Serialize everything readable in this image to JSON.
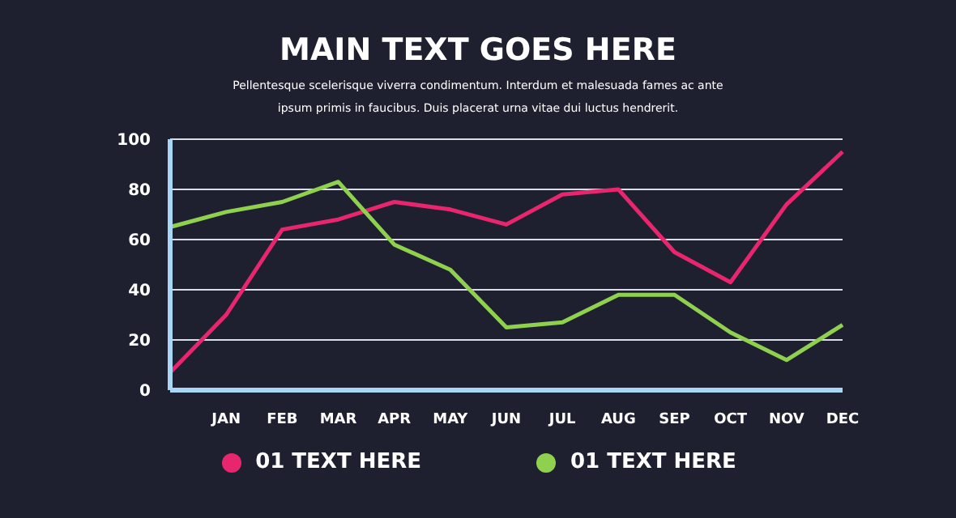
{
  "chart_data": {
    "type": "line",
    "title": "MAIN TEXT GOES HERE",
    "subtitle": "Pellentesque scelerisque viverra condimentum. Interdum et malesuada fames ac ante ipsum primis in faucibus. Duis placerat urna vitae dui luctus hendrerit.",
    "categories": [
      null,
      "JAN",
      "FEB",
      "MAR",
      "APR",
      "MAY",
      "JUN",
      "JUL",
      "AUG",
      "SEP",
      "OCT",
      "NOV",
      "DEC"
    ],
    "series": [
      {
        "name": "01 TEXT HERE",
        "color": "#e8266e",
        "values": [
          7,
          30,
          64,
          68,
          75,
          72,
          66,
          78,
          80,
          55,
          43,
          74,
          95
        ]
      },
      {
        "name": "01 TEXT HERE",
        "color": "#8fd14f",
        "values": [
          65,
          71,
          75,
          83,
          58,
          48,
          25,
          27,
          38,
          38,
          23,
          12,
          26
        ]
      }
    ],
    "ylim": [
      0,
      100
    ],
    "yticks": [
      0,
      20,
      40,
      60,
      80,
      100
    ],
    "grid": "y",
    "legend": "bottom",
    "marker": "none",
    "line_style": "solid"
  }
}
